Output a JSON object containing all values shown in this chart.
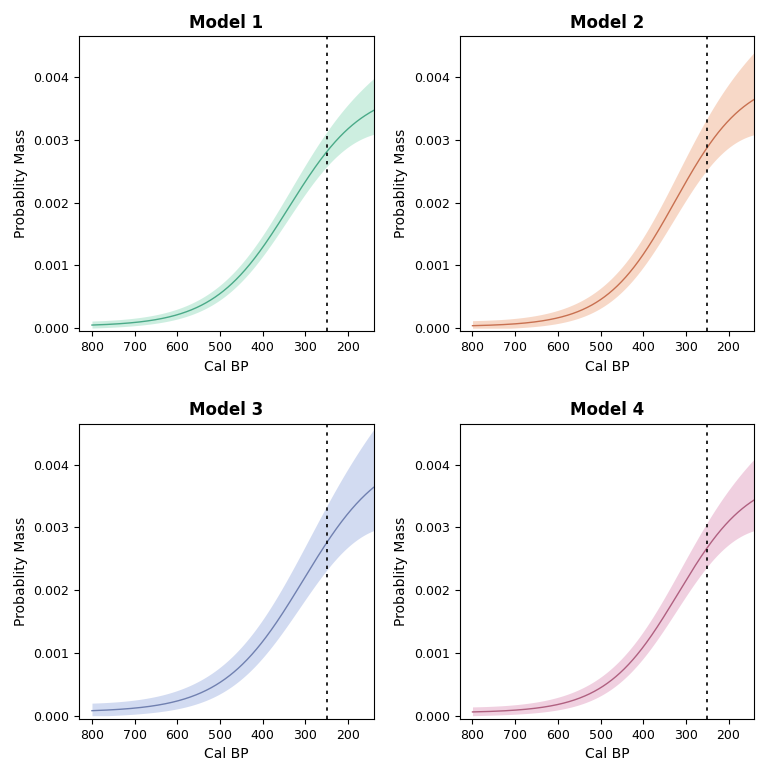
{
  "titles": [
    "Model 1",
    "Model 2",
    "Model 3",
    "Model 4"
  ],
  "line_colors": [
    "#4aaa88",
    "#c87050",
    "#7080b0",
    "#b06080"
  ],
  "fill_colors": [
    "#b8e8d4",
    "#f5c8b0",
    "#c0ccec",
    "#ebbcd4"
  ],
  "fill_alpha": [
    0.7,
    0.7,
    0.7,
    0.7
  ],
  "xlabel": "Cal BP",
  "ylabel": "Probablity Mass",
  "vline_x": 250,
  "xlim": [
    830,
    140
  ],
  "ylim": [
    -5e-05,
    0.00465
  ],
  "xticks": [
    800,
    700,
    600,
    500,
    400,
    300,
    200
  ],
  "yticks": [
    0.0,
    0.001,
    0.002,
    0.003,
    0.004
  ],
  "title_fontsize": 12,
  "axis_fontsize": 10,
  "tick_fontsize": 9,
  "figsize": [
    7.68,
    7.75
  ],
  "dpi": 100
}
